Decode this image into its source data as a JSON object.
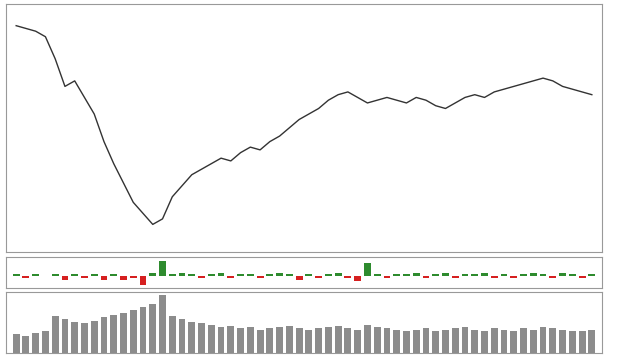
{
  "chart_data": [
    {
      "type": "line",
      "color": "#333333",
      "x": [
        1,
        2,
        3,
        4,
        5,
        6,
        7,
        8,
        9,
        10,
        11,
        12,
        13,
        14,
        15,
        16,
        17,
        18,
        19,
        20,
        21,
        22,
        23,
        24,
        25,
        26,
        27,
        28,
        29,
        30,
        31,
        32,
        33,
        34,
        35,
        36,
        37,
        38,
        39,
        40,
        41,
        42,
        43,
        44,
        45,
        46,
        47,
        48,
        49,
        50,
        51,
        52,
        53,
        54,
        55,
        56,
        57,
        58,
        59,
        60
      ],
      "values": [
        92,
        91,
        90,
        88,
        80,
        70,
        72,
        66,
        60,
        50,
        42,
        35,
        28,
        24,
        20,
        22,
        30,
        34,
        38,
        40,
        42,
        44,
        43,
        46,
        48,
        47,
        50,
        52,
        55,
        58,
        60,
        62,
        65,
        67,
        68,
        66,
        64,
        65,
        66,
        65,
        64,
        66,
        65,
        63,
        62,
        64,
        66,
        67,
        66,
        68,
        69,
        70,
        71,
        72,
        73,
        72,
        70,
        69,
        68,
        67
      ],
      "xlim": [
        0,
        61
      ],
      "ylim": [
        10,
        100
      ],
      "tick_labels": false,
      "grid": false
    },
    {
      "type": "bar",
      "x": [
        1,
        2,
        3,
        4,
        5,
        6,
        7,
        8,
        9,
        10,
        11,
        12,
        13,
        14,
        15,
        16,
        17,
        18,
        19,
        20,
        21,
        22,
        23,
        24,
        25,
        26,
        27,
        28,
        29,
        30,
        31,
        32,
        33,
        34,
        35,
        36,
        37,
        38,
        39,
        40,
        41,
        42,
        43,
        44,
        45,
        46,
        47,
        48,
        49,
        50,
        51,
        52,
        53,
        54,
        55,
        56,
        57,
        58,
        59,
        60
      ],
      "values": [
        1,
        -1,
        1,
        0,
        1,
        -2,
        1,
        -1,
        1,
        -2,
        1,
        -2,
        -1,
        -5,
        2,
        9,
        1,
        2,
        1,
        -1,
        1,
        2,
        -1,
        1,
        1,
        -1,
        1,
        2,
        1,
        -2,
        1,
        -1,
        1,
        2,
        -1,
        -3,
        8,
        1,
        -1,
        1,
        1,
        2,
        -1,
        1,
        2,
        -1,
        1,
        1,
        2,
        -1,
        1,
        -1,
        1,
        2,
        1,
        -1,
        2,
        1,
        -1,
        1
      ],
      "colors_by_sign": [
        "#2e8b2e",
        "#d62020"
      ],
      "xlim": [
        0,
        61
      ],
      "ylim": [
        -7,
        11
      ],
      "tick_labels": false,
      "grid": false
    },
    {
      "type": "bar",
      "color": "#8c8c8c",
      "x": [
        1,
        2,
        3,
        4,
        5,
        6,
        7,
        8,
        9,
        10,
        11,
        12,
        13,
        14,
        15,
        16,
        17,
        18,
        19,
        20,
        21,
        22,
        23,
        24,
        25,
        26,
        27,
        28,
        29,
        30,
        31,
        32,
        33,
        34,
        35,
        36,
        37,
        38,
        39,
        40,
        41,
        42,
        43,
        44,
        45,
        46,
        47,
        48,
        49,
        50,
        51,
        52,
        53,
        54,
        55,
        56,
        57,
        58,
        59,
        60
      ],
      "values": [
        30,
        28,
        32,
        35,
        60,
        55,
        50,
        48,
        52,
        58,
        62,
        65,
        70,
        75,
        80,
        95,
        60,
        55,
        50,
        48,
        45,
        42,
        44,
        40,
        42,
        38,
        40,
        42,
        44,
        40,
        38,
        40,
        42,
        44,
        40,
        38,
        45,
        42,
        40,
        38,
        36,
        38,
        40,
        35,
        38,
        40,
        42,
        38,
        36,
        40,
        38,
        36,
        40,
        38,
        42,
        40,
        38,
        36,
        35,
        38
      ],
      "xlim": [
        0,
        61
      ],
      "ylim": [
        0,
        100
      ],
      "tick_labels": false,
      "grid": false
    }
  ]
}
